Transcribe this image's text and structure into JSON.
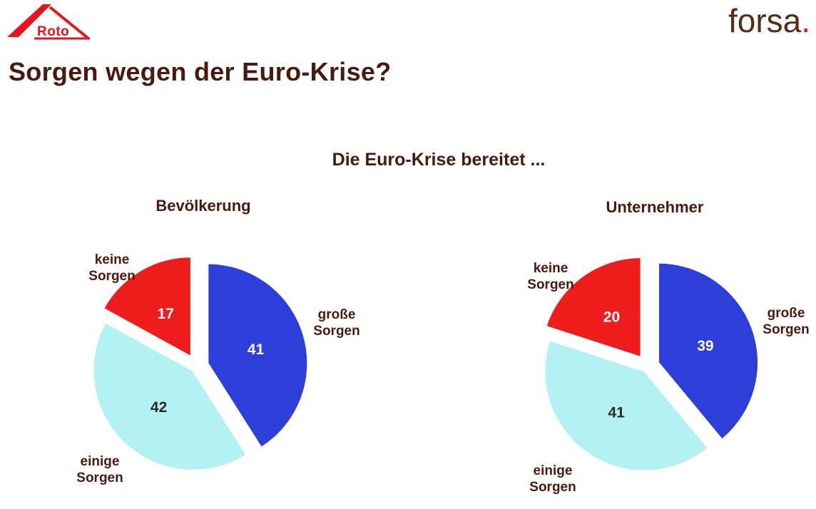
{
  "logos": {
    "left_logo_text": "Roto",
    "right_logo_text": "forsa",
    "right_logo_dot": "."
  },
  "page": {
    "title": "Sorgen wegen der Euro-Krise?"
  },
  "chart_data": {
    "type": "pie",
    "title": "Die Euro-Krise bereitet ...",
    "categories": [
      "große Sorgen",
      "einige Sorgen",
      "keine Sorgen"
    ],
    "colors": [
      "#2e3fd9",
      "#b4f1f3",
      "#ee1c1c"
    ],
    "pies": [
      {
        "name": "Bevölkerung",
        "values": [
          41,
          42,
          17
        ]
      },
      {
        "name": "Unternehmer",
        "values": [
          39,
          41,
          20
        ]
      }
    ],
    "slice_labels": {
      "gross": [
        "große",
        "Sorgen"
      ],
      "einige": [
        "einige",
        "Sorgen"
      ],
      "keine": [
        "keine",
        "Sorgen"
      ]
    }
  }
}
